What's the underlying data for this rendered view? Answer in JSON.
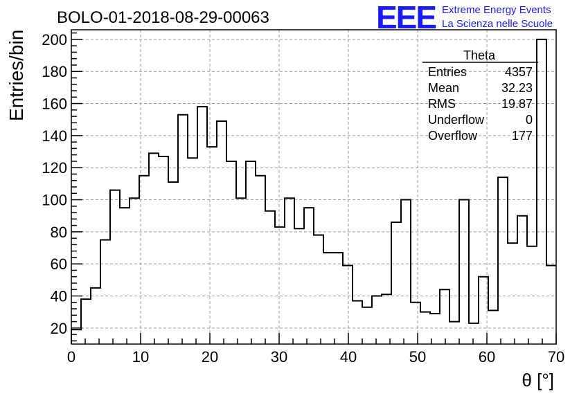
{
  "header": {
    "run_title": "BOLO-01-2018-08-29-00063",
    "logo_text": "EEE",
    "logo_line1": "Extreme Energy Events",
    "logo_line2": "La Scienza nelle Scuole",
    "logo_color": "#1a1aff"
  },
  "stats_box": {
    "name": "Theta",
    "rows": [
      {
        "label": "Entries",
        "value": "4357"
      },
      {
        "label": "Mean",
        "value": "32.23"
      },
      {
        "label": "RMS",
        "value": "19.87"
      },
      {
        "label": "Underflow",
        "value": "0"
      },
      {
        "label": "Overflow",
        "value": "177"
      }
    ]
  },
  "chart_data": {
    "type": "histogram",
    "title": "BOLO-01-2018-08-29-00063",
    "xlabel": "θ [°]",
    "ylabel": "Entries/bin",
    "xlim": [
      0,
      70
    ],
    "ylim": [
      10,
      206
    ],
    "grid": true,
    "x_ticks": [
      0,
      10,
      20,
      30,
      40,
      50,
      60,
      70
    ],
    "y_ticks": [
      20,
      40,
      60,
      80,
      100,
      120,
      140,
      160,
      180,
      200
    ],
    "bin_width": 1.4,
    "bin_edges_start": 0,
    "values": [
      19,
      38,
      45,
      75,
      106,
      95,
      101,
      115,
      129,
      127,
      111,
      153,
      126,
      158,
      133,
      149,
      124,
      101,
      124,
      115,
      93,
      83,
      101,
      82,
      95,
      78,
      67,
      67,
      59,
      37,
      33,
      40,
      41,
      86,
      100,
      36,
      30,
      29,
      44,
      24,
      100,
      23,
      52,
      31,
      114,
      73,
      90,
      71,
      200,
      59
    ]
  }
}
